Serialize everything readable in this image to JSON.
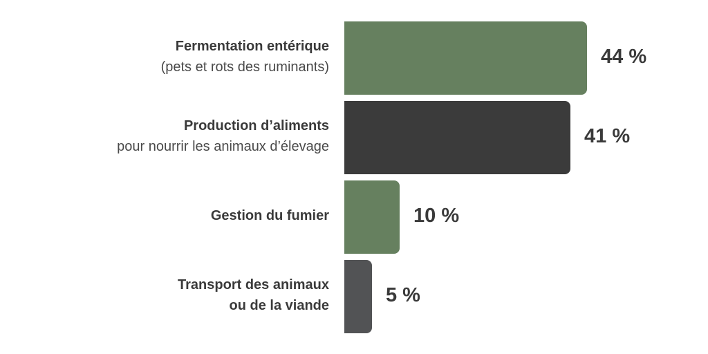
{
  "chart_data": {
    "type": "bar",
    "orientation": "horizontal",
    "categories": [
      {
        "title": "Fermentation entérique",
        "subtitle": "(pets et rots des ruminants)"
      },
      {
        "title": "Production d’aliments",
        "subtitle": "pour nourrir les animaux d’élevage"
      },
      {
        "title": "Gestion du fumier",
        "subtitle": ""
      },
      {
        "title": "Transport des animaux",
        "subtitle": "ou de la viande"
      }
    ],
    "values": [
      44,
      41,
      10,
      5
    ],
    "value_labels": [
      "44 %",
      "41 %",
      "10 %",
      "5 %"
    ],
    "colors": [
      "#66805f",
      "#3b3b3b",
      "#66805f",
      "#525355"
    ],
    "subtitle_bold": [
      false,
      false,
      false,
      true
    ],
    "xlim": [
      0,
      44
    ],
    "grid": false,
    "legend": "none"
  }
}
